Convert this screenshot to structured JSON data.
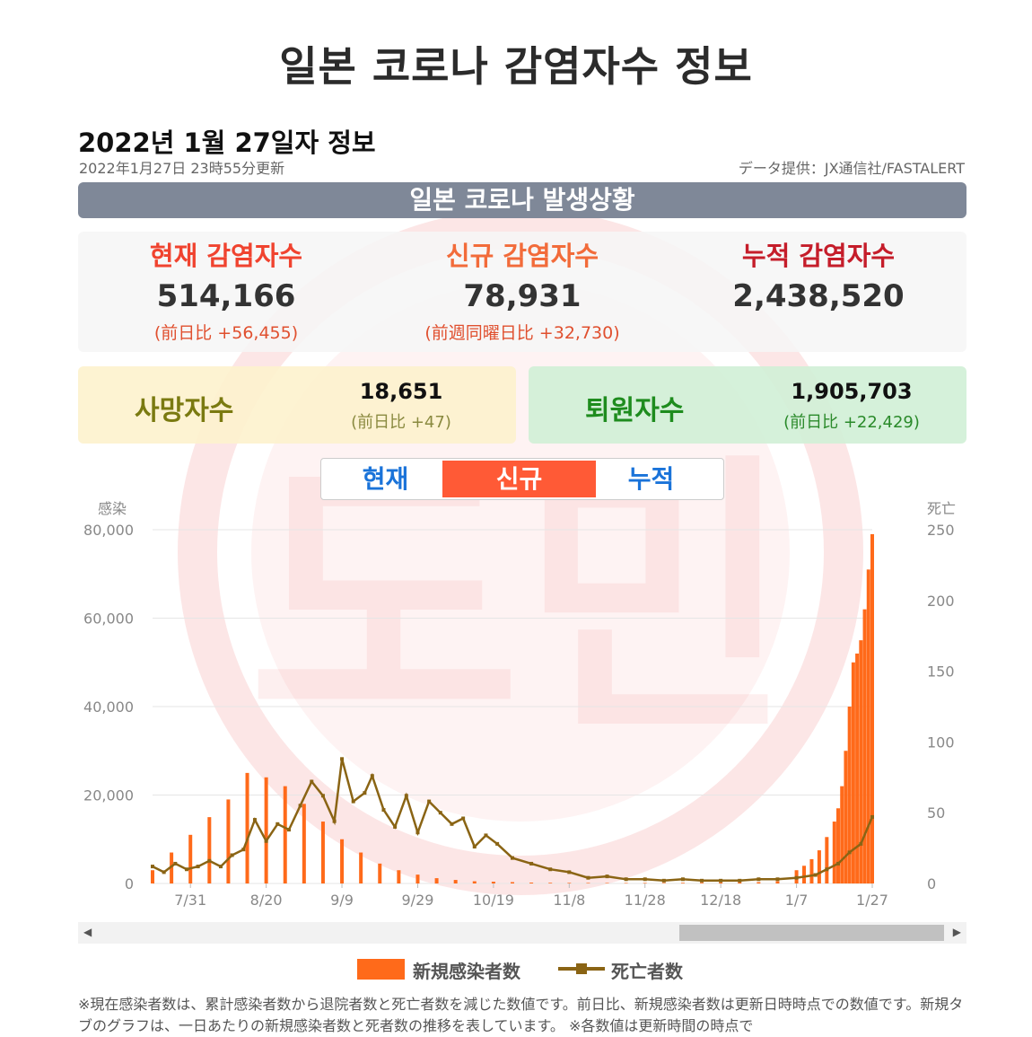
{
  "header": {
    "title": "일본 코로나 감염자수 정보",
    "date_title": "2022년 1월 27일자 정보",
    "updated": "2022年1月27日 23時55分更新",
    "source": "データ提供：JX通信社/FASTALERT"
  },
  "status_bar": {
    "title": "일본 코로나 발생상황"
  },
  "stats": {
    "current": {
      "label": "현재 감염자수",
      "value": "514,166",
      "delta": "(前日比 +56,455)"
    },
    "new": {
      "label": "신규 감염자수",
      "value": "78,931",
      "delta": "(前週同曜日比 +32,730)"
    },
    "cumulative": {
      "label": "누적 감염자수",
      "value": "2,438,520"
    }
  },
  "deaths": {
    "label": "사망자수",
    "value": "18,651",
    "delta": "(前日比 +47)"
  },
  "recovered": {
    "label": "퇴원자수",
    "value": "1,905,703",
    "delta": "(前日比 +22,429)"
  },
  "tabs": [
    {
      "label": "현재",
      "active": false
    },
    {
      "label": "신규",
      "active": true
    },
    {
      "label": "누적",
      "active": false
    }
  ],
  "watermark": {
    "text": "도민"
  },
  "colors": {
    "current_label": "#f0432f",
    "new_label": "#f26b3a",
    "cumulative_label": "#c51d2a",
    "deaths_label": "#7a7a10",
    "recovered_label": "#1e8c1e",
    "delta_red": "#e0502f",
    "delta_olive": "#8a8a40",
    "delta_green": "#2a8a2a",
    "bar": "#ff6a1a",
    "line": "#8a6414"
  },
  "chart_data": {
    "type": "bar+line",
    "title": "",
    "y_left_label": "感染",
    "y_right_label": "死亡",
    "y_left_ticks": [
      "80,000",
      "60,000",
      "40,000",
      "20,000",
      "0"
    ],
    "y_right_ticks": [
      "250",
      "200",
      "150",
      "100",
      "50",
      "0"
    ],
    "ylim_left": [
      0,
      80000
    ],
    "ylim_right": [
      0,
      250
    ],
    "x_tick_labels": [
      "7/31",
      "8/20",
      "9/9",
      "9/29",
      "10/19",
      "11/8",
      "11/28",
      "12/18",
      "1/7",
      "1/27"
    ],
    "x_tick_days": [
      10,
      30,
      50,
      70,
      90,
      110,
      130,
      150,
      170,
      190
    ],
    "day_count": 191,
    "bar_days": [
      0,
      5,
      10,
      15,
      20,
      25,
      30,
      35,
      40,
      45,
      50,
      55,
      60,
      65,
      70,
      75,
      80,
      85,
      90,
      95,
      100,
      105,
      110,
      115,
      120,
      125,
      130,
      135,
      140,
      145,
      150,
      155,
      160,
      165,
      170,
      172,
      174,
      176,
      178,
      180,
      181,
      182,
      183,
      184,
      185,
      186,
      187,
      188,
      189,
      190
    ],
    "series": [
      {
        "name": "新規感染者数",
        "axis": "left",
        "values": [
          3000,
          7000,
          11000,
          15000,
          19000,
          25000,
          24000,
          22000,
          18000,
          14000,
          10000,
          7000,
          4500,
          3000,
          2000,
          1200,
          800,
          500,
          400,
          300,
          200,
          150,
          130,
          120,
          110,
          110,
          120,
          130,
          150,
          170,
          200,
          250,
          300,
          500,
          3000,
          4000,
          5500,
          7500,
          10500,
          14000,
          17000,
          22000,
          30000,
          40000,
          50000,
          52000,
          55000,
          62000,
          71000,
          79000
        ]
      },
      {
        "name": "死亡者数",
        "axis": "right",
        "days": [
          0,
          3,
          6,
          9,
          12,
          15,
          18,
          21,
          24,
          27,
          30,
          33,
          36,
          39,
          42,
          45,
          48,
          50,
          53,
          56,
          58,
          61,
          64,
          67,
          70,
          73,
          76,
          79,
          82,
          85,
          88,
          91,
          95,
          100,
          105,
          110,
          115,
          120,
          125,
          130,
          135,
          140,
          145,
          150,
          155,
          160,
          165,
          170,
          175,
          178,
          181,
          184,
          187,
          190
        ],
        "values": [
          12,
          8,
          14,
          10,
          12,
          16,
          12,
          20,
          24,
          45,
          30,
          42,
          38,
          55,
          72,
          62,
          44,
          88,
          58,
          64,
          76,
          52,
          40,
          62,
          36,
          58,
          50,
          42,
          46,
          26,
          34,
          28,
          18,
          14,
          10,
          8,
          4,
          5,
          3,
          3,
          2,
          3,
          2,
          2,
          2,
          3,
          3,
          4,
          6,
          10,
          14,
          22,
          28,
          47
        ]
      }
    ]
  },
  "scrollbar": {
    "left_arrow": "◀",
    "right_arrow": "▶"
  },
  "legend": [
    {
      "label": "新規感染者数"
    },
    {
      "label": "死亡者数"
    }
  ],
  "footnote": "※現在感染者数は、累計感染者数から退院者数と死亡者数を減じた数値です。前日比、新規感染者数は更新日時時点での数値です。新規タブのグラフは、一日あたりの新規感染者数と死者数の推移を表しています。 ※各数値は更新時間の時点で"
}
